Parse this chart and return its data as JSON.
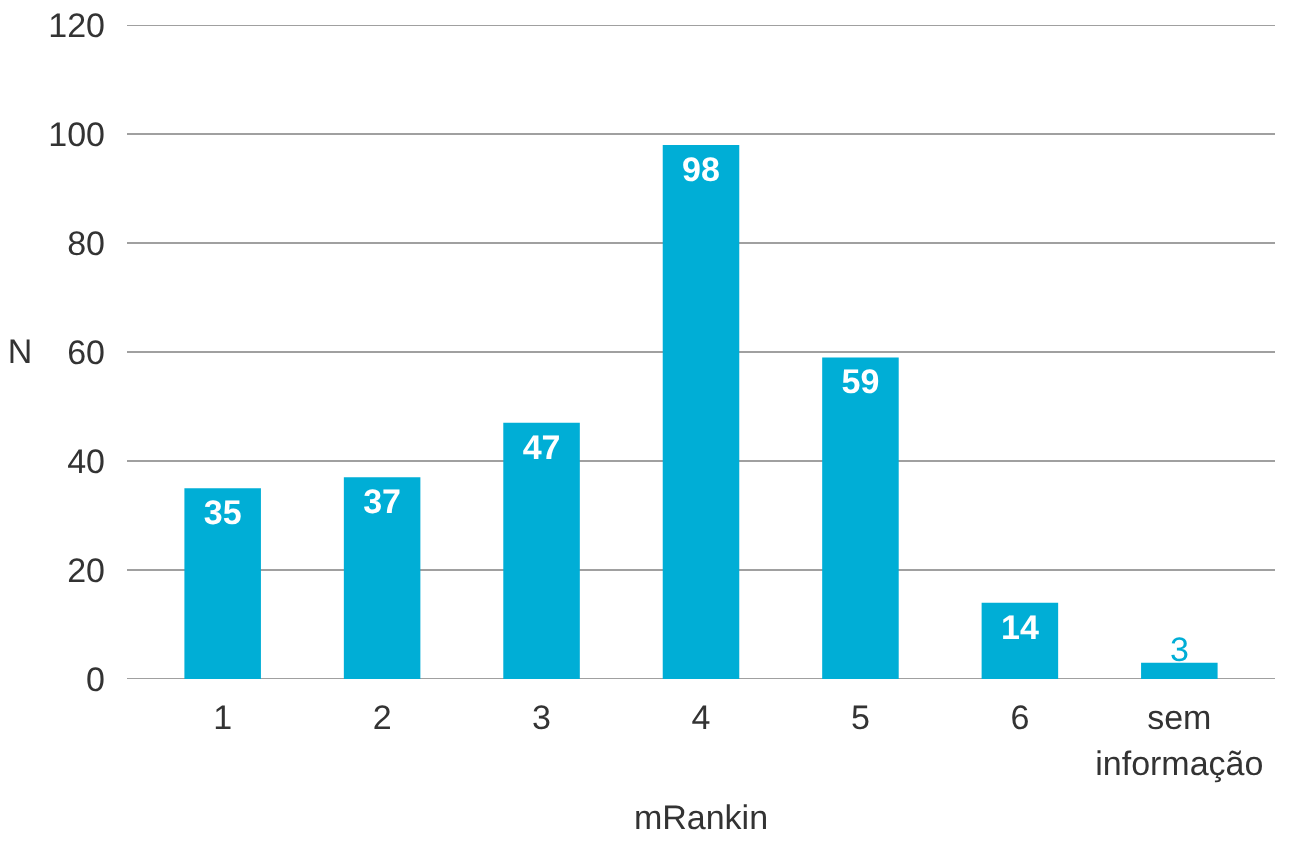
{
  "chart_data": {
    "type": "bar",
    "xlabel": "mRankin",
    "ylabel": "N",
    "categories": [
      "1",
      "2",
      "3",
      "4",
      "5",
      "6",
      "sem informação"
    ],
    "values": [
      35,
      37,
      47,
      98,
      59,
      14,
      3
    ],
    "color": "#00aed6",
    "ylim": [
      0,
      120
    ],
    "yticks": [
      0,
      20,
      40,
      60,
      80,
      100,
      120
    ],
    "grid": "y",
    "data_labels": true
  }
}
